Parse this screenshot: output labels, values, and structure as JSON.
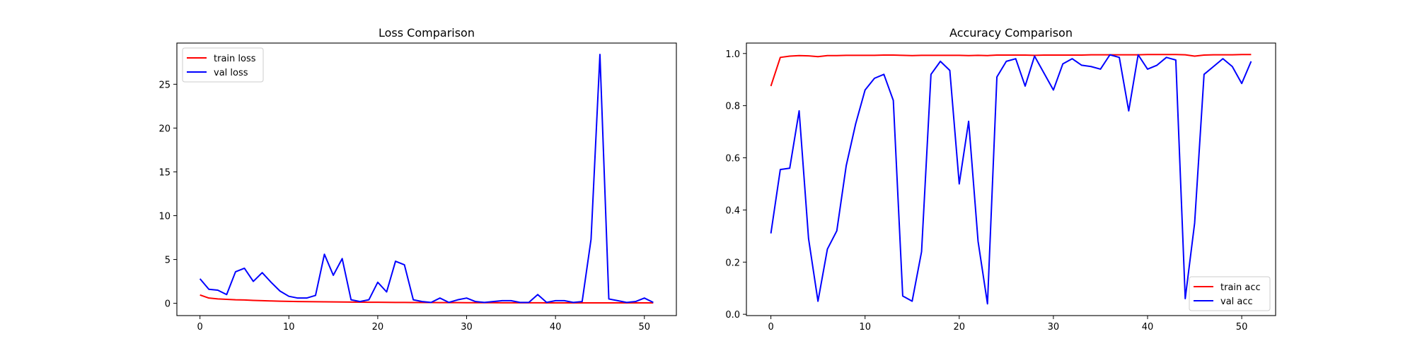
{
  "chart_data": [
    {
      "type": "line",
      "title": "Loss Comparison",
      "xlabel": "",
      "ylabel": "",
      "xlim": [
        -2.6,
        53.6
      ],
      "ylim": [
        -1.4,
        29.7
      ],
      "xticks": [
        0,
        10,
        20,
        30,
        40,
        50
      ],
      "yticks": [
        0,
        5,
        10,
        15,
        20,
        25
      ],
      "grid": false,
      "legend_position": "top-left",
      "x": [
        0,
        1,
        2,
        3,
        4,
        5,
        6,
        7,
        8,
        9,
        10,
        11,
        12,
        13,
        14,
        15,
        16,
        17,
        18,
        19,
        20,
        21,
        22,
        23,
        24,
        25,
        26,
        27,
        28,
        29,
        30,
        31,
        32,
        33,
        34,
        35,
        36,
        37,
        38,
        39,
        40,
        41,
        42,
        43,
        44,
        45,
        46,
        47,
        48,
        49,
        50,
        51
      ],
      "series": [
        {
          "name": "train loss",
          "color": "#ff0000",
          "values": [
            0.95,
            0.6,
            0.5,
            0.45,
            0.4,
            0.38,
            0.33,
            0.3,
            0.27,
            0.24,
            0.22,
            0.2,
            0.19,
            0.18,
            0.17,
            0.16,
            0.15,
            0.14,
            0.13,
            0.12,
            0.12,
            0.11,
            0.1,
            0.1,
            0.09,
            0.09,
            0.09,
            0.08,
            0.08,
            0.08,
            0.07,
            0.07,
            0.07,
            0.07,
            0.06,
            0.06,
            0.06,
            0.06,
            0.06,
            0.05,
            0.05,
            0.05,
            0.05,
            0.05,
            0.05,
            0.05,
            0.05,
            0.05,
            0.05,
            0.05,
            0.05,
            0.05
          ]
        },
        {
          "name": "val loss",
          "color": "#0000ff",
          "values": [
            2.8,
            1.6,
            1.5,
            1.0,
            3.6,
            4.0,
            2.5,
            3.5,
            2.4,
            1.4,
            0.8,
            0.6,
            0.6,
            0.9,
            5.6,
            3.2,
            5.1,
            0.4,
            0.2,
            0.4,
            2.4,
            1.3,
            4.8,
            4.4,
            0.4,
            0.2,
            0.1,
            0.6,
            0.1,
            0.4,
            0.6,
            0.2,
            0.1,
            0.2,
            0.3,
            0.3,
            0.1,
            0.1,
            1.0,
            0.1,
            0.3,
            0.3,
            0.1,
            0.2,
            7.3,
            28.4,
            0.5,
            0.3,
            0.1,
            0.2,
            0.6,
            0.1
          ]
        }
      ]
    },
    {
      "type": "line",
      "title": "Accuracy Comparison",
      "xlabel": "",
      "ylabel": "",
      "xlim": [
        -2.6,
        53.6
      ],
      "ylim": [
        -0.005,
        1.04
      ],
      "xticks": [
        0,
        10,
        20,
        30,
        40,
        50
      ],
      "yticks": [
        0.0,
        0.2,
        0.4,
        0.6,
        0.8,
        1.0
      ],
      "ytick_labels": [
        "0.0",
        "0.2",
        "0.4",
        "0.6",
        "0.8",
        "1.0"
      ],
      "grid": false,
      "legend_position": "bottom-right",
      "x": [
        0,
        1,
        2,
        3,
        4,
        5,
        6,
        7,
        8,
        9,
        10,
        11,
        12,
        13,
        14,
        15,
        16,
        17,
        18,
        19,
        20,
        21,
        22,
        23,
        24,
        25,
        26,
        27,
        28,
        29,
        30,
        31,
        32,
        33,
        34,
        35,
        36,
        37,
        38,
        39,
        40,
        41,
        42,
        43,
        44,
        45,
        46,
        47,
        48,
        49,
        50,
        51
      ],
      "series": [
        {
          "name": "train acc",
          "color": "#ff0000",
          "values": [
            0.875,
            0.985,
            0.99,
            0.992,
            0.991,
            0.988,
            0.992,
            0.992,
            0.993,
            0.993,
            0.993,
            0.993,
            0.994,
            0.994,
            0.993,
            0.992,
            0.993,
            0.993,
            0.993,
            0.993,
            0.993,
            0.992,
            0.993,
            0.992,
            0.994,
            0.994,
            0.994,
            0.994,
            0.993,
            0.994,
            0.994,
            0.994,
            0.994,
            0.994,
            0.995,
            0.995,
            0.995,
            0.995,
            0.995,
            0.995,
            0.996,
            0.996,
            0.996,
            0.996,
            0.995,
            0.99,
            0.994,
            0.995,
            0.995,
            0.995,
            0.996,
            0.996
          ]
        },
        {
          "name": "val acc",
          "color": "#0000ff",
          "values": [
            0.31,
            0.555,
            0.56,
            0.78,
            0.29,
            0.05,
            0.25,
            0.32,
            0.57,
            0.73,
            0.86,
            0.905,
            0.92,
            0.82,
            0.07,
            0.05,
            0.24,
            0.92,
            0.97,
            0.935,
            0.5,
            0.74,
            0.28,
            0.04,
            0.91,
            0.97,
            0.98,
            0.875,
            0.99,
            0.925,
            0.86,
            0.96,
            0.98,
            0.955,
            0.95,
            0.94,
            0.995,
            0.985,
            0.78,
            0.995,
            0.94,
            0.955,
            0.985,
            0.975,
            0.06,
            0.35,
            0.92,
            0.95,
            0.98,
            0.95,
            0.885,
            0.97
          ]
        }
      ]
    }
  ]
}
